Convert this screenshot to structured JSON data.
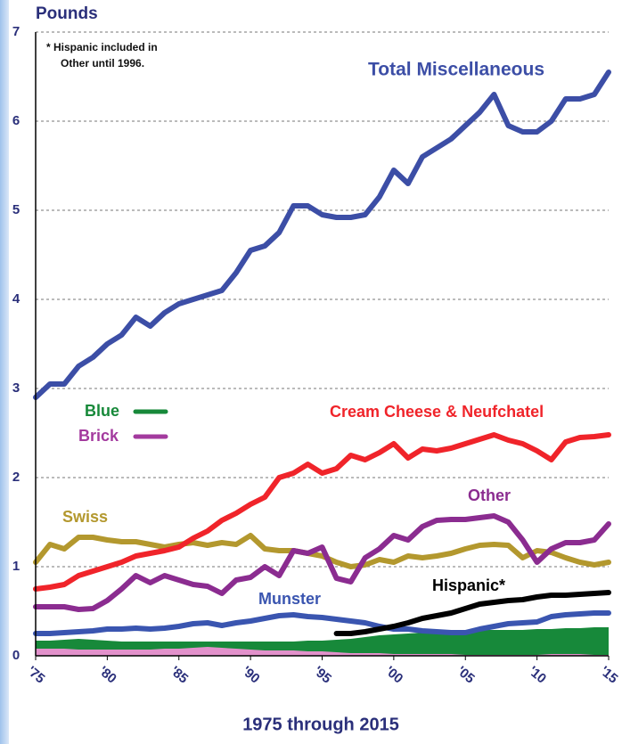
{
  "chart_data": {
    "type": "line",
    "y_label": "Pounds",
    "x_label": "1975 through 2015",
    "annotation": [
      "* Hispanic included in",
      "Other until 1996."
    ],
    "x": [
      1975,
      1976,
      1977,
      1978,
      1979,
      1980,
      1981,
      1982,
      1983,
      1984,
      1985,
      1986,
      1987,
      1988,
      1989,
      1990,
      1991,
      1992,
      1993,
      1994,
      1995,
      1996,
      1997,
      1998,
      1999,
      2000,
      2001,
      2002,
      2003,
      2004,
      2005,
      2006,
      2007,
      2008,
      2009,
      2010,
      2011,
      2012,
      2013,
      2014,
      2015
    ],
    "xlim": [
      1975,
      2015
    ],
    "xticks": [
      {
        "value": 1975,
        "label": "'75"
      },
      {
        "value": 1980,
        "label": "'80"
      },
      {
        "value": 1985,
        "label": "'85"
      },
      {
        "value": 1990,
        "label": "'90"
      },
      {
        "value": 1995,
        "label": "'95"
      },
      {
        "value": 2000,
        "label": "'00"
      },
      {
        "value": 2005,
        "label": "'05"
      },
      {
        "value": 2010,
        "label": "'10"
      },
      {
        "value": 2015,
        "label": "'15"
      }
    ],
    "ylim": [
      0,
      7
    ],
    "yticks": [
      0,
      1,
      2,
      3,
      4,
      5,
      6,
      7
    ],
    "grid": true,
    "series": [
      {
        "name": "Blue",
        "color": "#17893a",
        "style": "area",
        "values": [
          0.17,
          0.17,
          0.18,
          0.19,
          0.18,
          0.17,
          0.16,
          0.16,
          0.16,
          0.16,
          0.16,
          0.16,
          0.16,
          0.16,
          0.16,
          0.16,
          0.16,
          0.16,
          0.16,
          0.17,
          0.17,
          0.18,
          0.19,
          0.21,
          0.23,
          0.24,
          0.25,
          0.26,
          0.27,
          0.28,
          0.29,
          0.29,
          0.29,
          0.29,
          0.29,
          0.3,
          0.3,
          0.31,
          0.31,
          0.32,
          0.32
        ]
      },
      {
        "name": "Brick",
        "color": "#e291cb",
        "style": "area",
        "values": [
          0.08,
          0.08,
          0.08,
          0.07,
          0.07,
          0.07,
          0.07,
          0.07,
          0.07,
          0.08,
          0.08,
          0.09,
          0.1,
          0.09,
          0.08,
          0.07,
          0.06,
          0.06,
          0.06,
          0.05,
          0.05,
          0.04,
          0.03,
          0.03,
          0.03,
          0.02,
          0.02,
          0.02,
          0.02,
          0.02,
          0.01,
          0.01,
          0.01,
          0.01,
          0.01,
          0.01,
          0.02,
          0.02,
          0.02,
          0.01,
          0.01
        ]
      },
      {
        "name": "Munster",
        "color": "#3a55b0",
        "values": [
          0.25,
          0.25,
          0.26,
          0.27,
          0.28,
          0.3,
          0.3,
          0.31,
          0.3,
          0.31,
          0.33,
          0.36,
          0.37,
          0.34,
          0.37,
          0.39,
          0.42,
          0.45,
          0.46,
          0.44,
          0.43,
          0.41,
          0.39,
          0.37,
          0.33,
          0.3,
          0.3,
          0.28,
          0.27,
          0.26,
          0.26,
          0.3,
          0.33,
          0.36,
          0.37,
          0.38,
          0.44,
          0.46,
          0.47,
          0.48,
          0.48
        ]
      },
      {
        "name": "Hispanic*",
        "color": "#000000",
        "values": [
          null,
          null,
          null,
          null,
          null,
          null,
          null,
          null,
          null,
          null,
          null,
          null,
          null,
          null,
          null,
          null,
          null,
          null,
          null,
          null,
          null,
          0.25,
          0.25,
          0.27,
          0.3,
          0.33,
          0.37,
          0.42,
          0.45,
          0.48,
          0.53,
          0.58,
          0.6,
          0.62,
          0.63,
          0.66,
          0.68,
          0.68,
          0.69,
          0.7,
          0.71
        ]
      },
      {
        "name": "Swiss",
        "color": "#b3982e",
        "values": [
          1.05,
          1.25,
          1.2,
          1.33,
          1.33,
          1.3,
          1.28,
          1.28,
          1.25,
          1.22,
          1.25,
          1.27,
          1.24,
          1.27,
          1.25,
          1.35,
          1.2,
          1.18,
          1.18,
          1.15,
          1.12,
          1.05,
          1.0,
          1.02,
          1.08,
          1.05,
          1.12,
          1.1,
          1.12,
          1.15,
          1.2,
          1.24,
          1.25,
          1.24,
          1.1,
          1.18,
          1.16,
          1.1,
          1.05,
          1.02,
          1.05
        ]
      },
      {
        "name": "Other",
        "color": "#8b2c90",
        "values": [
          0.55,
          0.55,
          0.55,
          0.52,
          0.53,
          0.62,
          0.75,
          0.9,
          0.82,
          0.9,
          0.85,
          0.8,
          0.78,
          0.7,
          0.85,
          0.88,
          1.0,
          0.9,
          1.18,
          1.15,
          1.22,
          0.87,
          0.83,
          1.1,
          1.2,
          1.35,
          1.3,
          1.45,
          1.52,
          1.53,
          1.53,
          1.55,
          1.57,
          1.5,
          1.3,
          1.05,
          1.2,
          1.27,
          1.27,
          1.3,
          1.48
        ]
      },
      {
        "name": "Cream Cheese & Neufchatel",
        "color": "#f0242a",
        "values": [
          0.75,
          0.77,
          0.8,
          0.9,
          0.95,
          1.0,
          1.05,
          1.12,
          1.15,
          1.18,
          1.22,
          1.32,
          1.4,
          1.52,
          1.6,
          1.7,
          1.78,
          2.0,
          2.05,
          2.15,
          2.05,
          2.1,
          2.25,
          2.2,
          2.28,
          2.38,
          2.22,
          2.32,
          2.3,
          2.33,
          2.38,
          2.43,
          2.48,
          2.42,
          2.38,
          2.3,
          2.2,
          2.4,
          2.45,
          2.46,
          2.48
        ]
      },
      {
        "name": "Total Miscellaneous",
        "color": "#3c4ea6",
        "values": [
          2.9,
          3.05,
          3.05,
          3.25,
          3.35,
          3.5,
          3.6,
          3.8,
          3.7,
          3.85,
          3.95,
          4.0,
          4.05,
          4.1,
          4.3,
          4.55,
          4.6,
          4.75,
          5.05,
          5.05,
          4.95,
          4.92,
          4.92,
          4.95,
          5.15,
          5.45,
          5.3,
          5.6,
          5.7,
          5.8,
          5.95,
          6.1,
          6.3,
          5.95,
          5.88,
          5.88,
          6.0,
          6.25,
          6.25,
          6.3,
          6.55
        ]
      }
    ]
  }
}
